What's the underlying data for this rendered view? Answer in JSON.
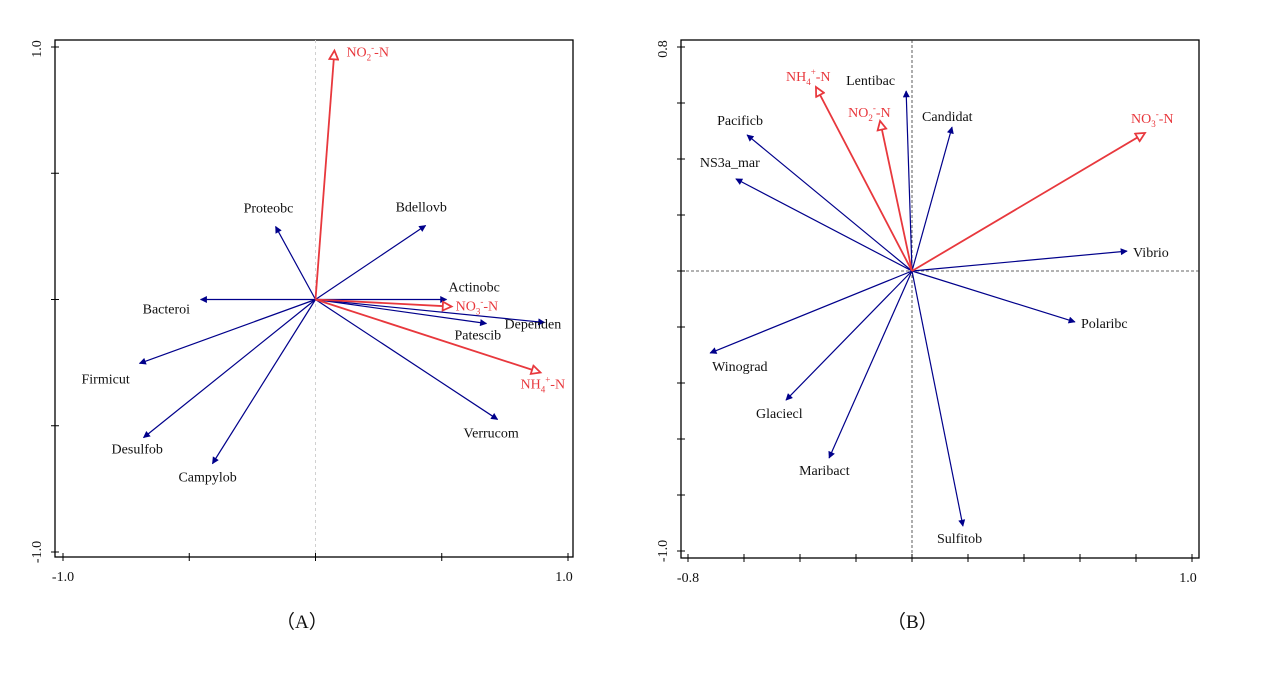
{
  "colors": {
    "species_arrow": "#00008B",
    "env_arrow": "#E8383D",
    "axis": "#000000",
    "zero_line_a": "#d0d0d0",
    "zero_line_b": "#333333"
  },
  "chart_data": [
    {
      "type": "biplot",
      "caption": "（A）",
      "xlim": [
        -1.0,
        1.0
      ],
      "ylim": [
        -1.0,
        1.0
      ],
      "xtick_labels": [
        "-1.0",
        "1.0"
      ],
      "ytick_labels": [
        "-1.0",
        "1.0"
      ],
      "xticks": [
        -1.0,
        -0.5,
        0.0,
        0.5,
        1.0
      ],
      "yticks": [
        -1.0,
        -0.5,
        0.0,
        0.5,
        1.0
      ],
      "zero_lines": "vertical",
      "species": [
        {
          "name": "Proteobc",
          "x": -0.158,
          "y": 0.289
        },
        {
          "name": "Bdellovb",
          "x": 0.436,
          "y": 0.293
        },
        {
          "name": "Actinobc",
          "x": 0.519,
          "y": 0.0
        },
        {
          "name": "Dependen",
          "x": 0.907,
          "y": -0.091
        },
        {
          "name": "Patescib",
          "x": 0.677,
          "y": -0.095
        },
        {
          "name": "Verrucom",
          "x": 0.721,
          "y": -0.475
        },
        {
          "name": "Bacteroi",
          "x": -0.455,
          "y": 0.0
        },
        {
          "name": "Firmicut",
          "x": -0.697,
          "y": -0.253
        },
        {
          "name": "Desulfob",
          "x": -0.681,
          "y": -0.547
        },
        {
          "name": "Campylob",
          "x": -0.408,
          "y": -0.65
        }
      ],
      "env": [
        {
          "name": "NO2-N",
          "base": "NO",
          "sub": "2",
          "sup": "-",
          "tail": "-N",
          "x": 0.075,
          "y": 0.986
        },
        {
          "name": "NO3-N",
          "base": "NO",
          "sub": "3",
          "sup": "-",
          "tail": "-N",
          "x": 0.539,
          "y": -0.028
        },
        {
          "name": "NH4-N",
          "base": "NH",
          "sub": "4",
          "sup": "+",
          "tail": "-N",
          "x": 0.891,
          "y": -0.289
        }
      ]
    },
    {
      "type": "biplot",
      "caption": "（B）",
      "xlim": [
        -0.8,
        1.0
      ],
      "ylim": [
        -1.0,
        0.8
      ],
      "xtick_labels": [
        "-0.8",
        "1.0"
      ],
      "ytick_labels": [
        "-1.0",
        "0.8"
      ],
      "xticks": [
        -0.8,
        -0.6,
        -0.4,
        -0.2,
        0.0,
        0.2,
        0.4,
        0.6,
        0.8,
        1.0
      ],
      "yticks": [
        -1.0,
        -0.8,
        -0.6,
        -0.4,
        -0.2,
        0.0,
        0.2,
        0.4,
        0.6,
        0.8
      ],
      "zero_lines": "both",
      "species": [
        {
          "name": "Lentibac",
          "x": -0.021,
          "y": 0.643
        },
        {
          "name": "Candidat",
          "x": 0.143,
          "y": 0.514
        },
        {
          "name": "Pacificb",
          "x": -0.589,
          "y": 0.486
        },
        {
          "name": "NS3a_mar",
          "x": -0.629,
          "y": 0.329
        },
        {
          "name": "Vibrio",
          "x": 0.768,
          "y": 0.071
        },
        {
          "name": "Polaribc",
          "x": 0.582,
          "y": -0.182
        },
        {
          "name": "Winograd",
          "x": -0.721,
          "y": -0.293
        },
        {
          "name": "Glaciecl",
          "x": -0.45,
          "y": -0.461
        },
        {
          "name": "Maribact",
          "x": -0.296,
          "y": -0.668
        },
        {
          "name": "Sulfitob",
          "x": 0.182,
          "y": -0.911
        }
      ],
      "env": [
        {
          "name": "NH4-N",
          "base": "NH",
          "sub": "4",
          "sup": "+",
          "tail": "-N",
          "x": -0.343,
          "y": 0.657
        },
        {
          "name": "NO2-N",
          "base": "NO",
          "sub": "2",
          "sup": "-",
          "tail": "-N",
          "x": -0.114,
          "y": 0.536
        },
        {
          "name": "NO3-N",
          "base": "NO",
          "sub": "3",
          "sup": "-",
          "tail": "-N",
          "x": 0.832,
          "y": 0.493
        }
      ]
    }
  ]
}
